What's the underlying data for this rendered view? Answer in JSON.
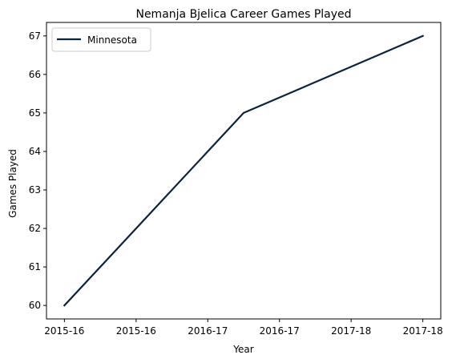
{
  "chart_data": {
    "type": "line",
    "title": "Nemanja Bjelica Career Games Played",
    "xlabel": "Year",
    "ylabel": "Games Played",
    "x": [
      0,
      1,
      2
    ],
    "xlim": [
      -0.1,
      2.1
    ],
    "xticks": [
      0,
      0.4,
      0.8,
      1.2,
      1.6,
      2.0
    ],
    "xtick_labels": [
      "2015-16",
      "2015-16",
      "2016-17",
      "2016-17",
      "2017-18",
      "2017-18"
    ],
    "ylim": [
      59.65,
      67.35
    ],
    "yticks": [
      60,
      61,
      62,
      63,
      64,
      65,
      66,
      67
    ],
    "grid": false,
    "legend_position": "top-left",
    "series": [
      {
        "name": "Minnesota",
        "color": "#0c2340",
        "values": [
          60,
          65,
          67
        ]
      }
    ]
  }
}
